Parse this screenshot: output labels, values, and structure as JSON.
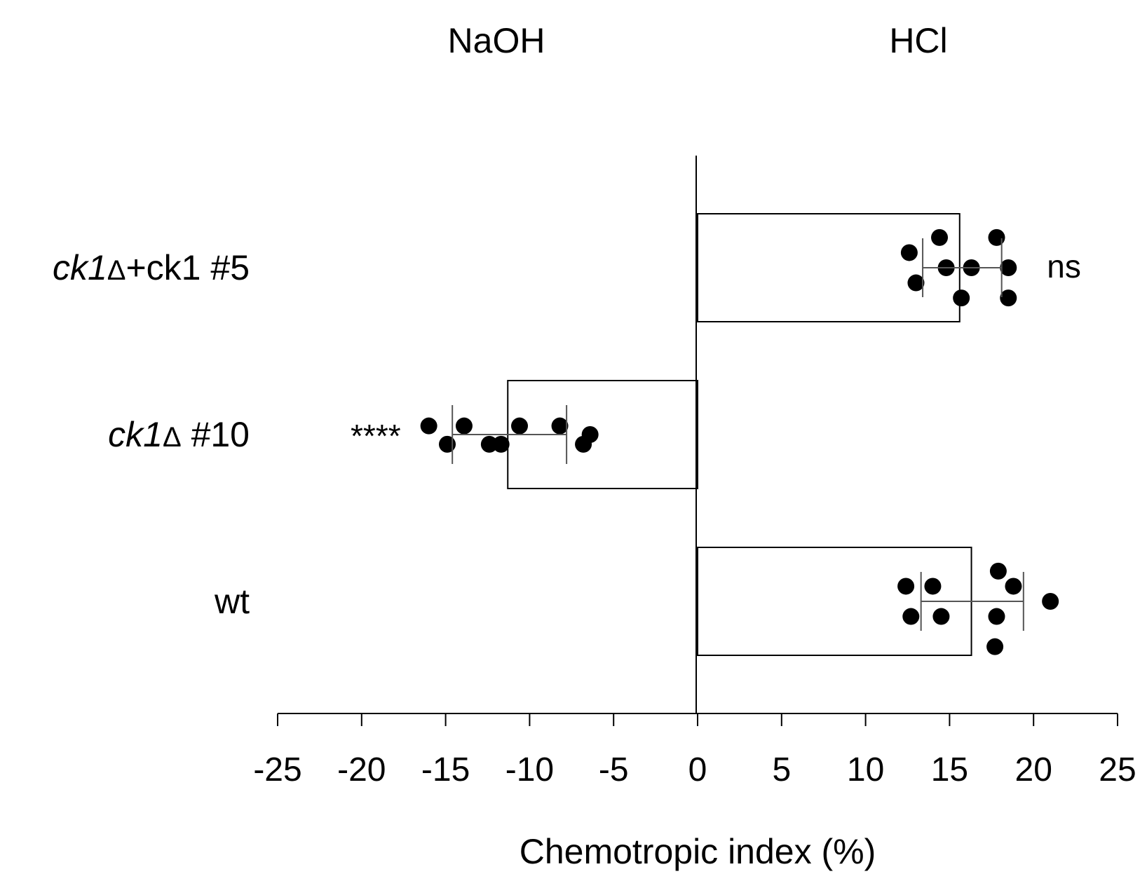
{
  "chart_data": {
    "type": "bar",
    "orientation": "horizontal",
    "xlabel": "Chemotropic index (%)",
    "xlim": [
      -25,
      25
    ],
    "xticks": [
      -25,
      -20,
      -15,
      -10,
      -5,
      0,
      5,
      10,
      15,
      20,
      25
    ],
    "xtick_labels": [
      "-25",
      "-20",
      "-15",
      "-10",
      "-5",
      "0",
      "5",
      "10",
      "15",
      "20",
      "25"
    ],
    "side_labels": {
      "negative": "NaOH",
      "positive": "HCl"
    },
    "categories": [
      {
        "id": "ck1-complemented",
        "label_italic": "ck1",
        "label_symbol": "Δ",
        "label_rest": "+ck1 #5",
        "mean": 15.6,
        "error_low": 13.4,
        "error_high": 18.1,
        "annotation": "ns",
        "points": [
          {
            "x": 14.4,
            "j": 0.28
          },
          {
            "x": 17.8,
            "j": 0.28
          },
          {
            "x": 12.6,
            "j": 0.14
          },
          {
            "x": 14.8,
            "j": 0.0
          },
          {
            "x": 16.3,
            "j": 0.0
          },
          {
            "x": 18.5,
            "j": 0.0
          },
          {
            "x": 13.0,
            "j": -0.14
          },
          {
            "x": 15.7,
            "j": -0.28
          },
          {
            "x": 18.5,
            "j": -0.28
          }
        ]
      },
      {
        "id": "ck1-deletion",
        "label_italic": "ck1",
        "label_symbol": "Δ",
        "label_rest": " #10",
        "mean": -11.3,
        "error_low": -14.6,
        "error_high": -7.8,
        "annotation": "****",
        "points": [
          {
            "x": -16.0,
            "j": 0.08
          },
          {
            "x": -13.9,
            "j": 0.08
          },
          {
            "x": -10.6,
            "j": 0.08
          },
          {
            "x": -8.2,
            "j": 0.08
          },
          {
            "x": -6.4,
            "j": 0.0
          },
          {
            "x": -14.9,
            "j": -0.09
          },
          {
            "x": -12.4,
            "j": -0.09
          },
          {
            "x": -11.7,
            "j": -0.09
          },
          {
            "x": -6.8,
            "j": -0.09
          }
        ]
      },
      {
        "id": "wt",
        "label_italic": "",
        "label_symbol": "",
        "label_rest": "wt",
        "mean": 16.3,
        "error_low": 13.3,
        "error_high": 19.4,
        "annotation": "",
        "points": [
          {
            "x": 17.9,
            "j": 0.28
          },
          {
            "x": 12.4,
            "j": 0.14
          },
          {
            "x": 14.0,
            "j": 0.14
          },
          {
            "x": 18.8,
            "j": 0.14
          },
          {
            "x": 21.0,
            "j": 0.0
          },
          {
            "x": 12.7,
            "j": -0.14
          },
          {
            "x": 14.5,
            "j": -0.14
          },
          {
            "x": 17.8,
            "j": -0.14
          },
          {
            "x": 17.7,
            "j": -0.42
          }
        ]
      }
    ]
  }
}
